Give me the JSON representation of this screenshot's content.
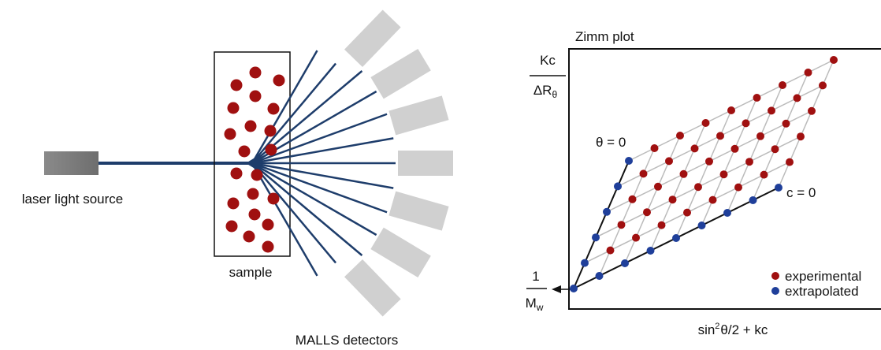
{
  "left": {
    "source_label": "laser light source",
    "sample_label": "sample",
    "detectors_label": "MALLS detectors"
  },
  "zimm": {
    "title": "Zimm plot",
    "y_label": {
      "numerator": "Kc",
      "denominator": "ΔR",
      "denominator_sub": "θ"
    },
    "intercept": {
      "numerator": "1",
      "denominator": "M",
      "denominator_sub": "w"
    },
    "x_label": {
      "prefix": "sin",
      "sup": "2",
      "rest": "θ/2 + kc"
    },
    "theta_zero": "θ = 0",
    "c_zero": "c = 0",
    "legend": [
      "experimental",
      "extrapolated"
    ]
  }
}
